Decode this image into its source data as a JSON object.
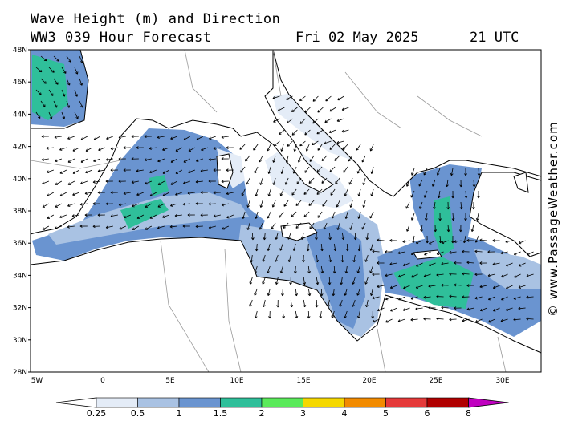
{
  "title": {
    "line1": "Wave Height (m) and Direction",
    "line2": "WW3 039 Hour Forecast",
    "date": "Fri 02 May 2025",
    "time": "21 UTC"
  },
  "watermark": "© www.PassageWeather.com",
  "map": {
    "region": "Mediterranean Sea",
    "lat_ticks": [
      "48N",
      "46N",
      "44N",
      "42N",
      "40N",
      "38N",
      "36N",
      "34N",
      "32N",
      "30N",
      "28N"
    ],
    "lon_ticks": [
      "5W",
      "0",
      "5E",
      "10E",
      "15E",
      "20E",
      "25E",
      "30E"
    ],
    "colors": {
      "land": "#ffffff",
      "border": "#9a9a9a",
      "coast": "#000000",
      "arrow": "#000000"
    }
  },
  "legend": {
    "labels": [
      "0.25",
      "0.5",
      "1",
      "1.5",
      "2",
      "3",
      "4",
      "5",
      "6",
      "8"
    ],
    "colors": [
      "#e4ecf7",
      "#a9c2e3",
      "#6a94d0",
      "#2fbf9a",
      "#5aea5a",
      "#f5d800",
      "#f28b00",
      "#e53a3a",
      "#b00000",
      "#c000c0"
    ]
  }
}
